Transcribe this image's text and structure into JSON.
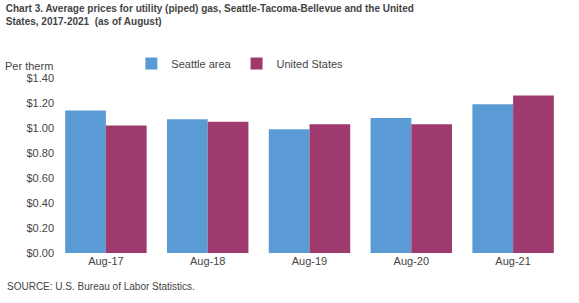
{
  "chart_data": {
    "type": "bar",
    "title": "Chart 3. Average prices for utility (piped) gas, Seattle-Tacoma-Bellevue and the United\nStates, 2017-2021  (as of August)",
    "subtitle": "Per therm",
    "annotations": [
      "SOURCE: U.S. Bureau of Labor Statistics."
    ],
    "categories": [
      "Aug-17",
      "Aug-18",
      "Aug-19",
      "Aug-20",
      "Aug-21"
    ],
    "series": [
      {
        "name": "Seattle area",
        "color": "#5B9BD5",
        "values": [
          1.14,
          1.07,
          0.99,
          1.08,
          1.19
        ]
      },
      {
        "name": "United States",
        "color": "#9E3A6E",
        "values": [
          1.02,
          1.05,
          1.03,
          1.03,
          1.26
        ]
      }
    ],
    "ylim": [
      0,
      1.4
    ],
    "yticks": [
      {
        "value": 0.0,
        "label": "$0.00"
      },
      {
        "value": 0.2,
        "label": "$0.20"
      },
      {
        "value": 0.4,
        "label": "$0.40"
      },
      {
        "value": 0.6,
        "label": "$0.60"
      },
      {
        "value": 0.8,
        "label": "$0.80"
      },
      {
        "value": 1.0,
        "label": "$1.00"
      },
      {
        "value": 1.2,
        "label": "$1.20"
      },
      {
        "value": 1.4,
        "label": "$1.40"
      }
    ],
    "grid": false,
    "legend": "upper left"
  }
}
